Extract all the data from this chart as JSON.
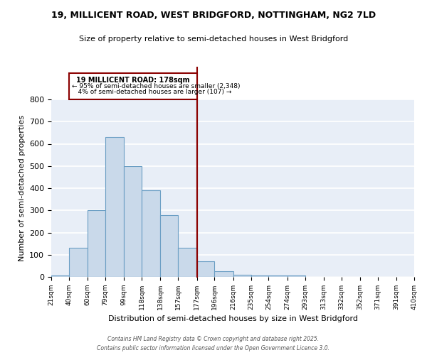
{
  "title_line1": "19, MILLICENT ROAD, WEST BRIDGFORD, NOTTINGHAM, NG2 7LD",
  "title_line2": "Size of property relative to semi-detached houses in West Bridgford",
  "xlabel": "Distribution of semi-detached houses by size in West Bridgford",
  "ylabel": "Number of semi-detached properties",
  "property_label": "19 MILLICENT ROAD: 178sqm",
  "pct_smaller": 95,
  "count_smaller": 2348,
  "pct_larger": 4,
  "count_larger": 107,
  "bin_edges": [
    21,
    40,
    60,
    79,
    99,
    118,
    138,
    157,
    177,
    196,
    216,
    235,
    254,
    274,
    293,
    313,
    332,
    352,
    371,
    391,
    410
  ],
  "bar_heights": [
    5,
    130,
    300,
    630,
    500,
    390,
    280,
    130,
    70,
    25,
    10,
    5,
    5,
    5,
    0,
    0,
    0,
    0,
    0,
    0
  ],
  "bar_facecolor": "#c9d9ea",
  "bar_edgecolor": "#6a9ec4",
  "vline_color": "#8b0000",
  "vline_x": 177,
  "annotation_box_color": "#8b0000",
  "background_color": "#e8eef7",
  "grid_color": "white",
  "footer_text": "Contains HM Land Registry data © Crown copyright and database right 2025.\nContains public sector information licensed under the Open Government Licence 3.0.",
  "ylim": [
    0,
    800
  ],
  "yticks": [
    0,
    100,
    200,
    300,
    400,
    500,
    600,
    700,
    800
  ],
  "tick_labels": [
    "21sqm",
    "40sqm",
    "60sqm",
    "79sqm",
    "99sqm",
    "118sqm",
    "138sqm",
    "157sqm",
    "177sqm",
    "196sqm",
    "216sqm",
    "235sqm",
    "254sqm",
    "274sqm",
    "293sqm",
    "313sqm",
    "332sqm",
    "352sqm",
    "371sqm",
    "391sqm",
    "410sqm"
  ]
}
